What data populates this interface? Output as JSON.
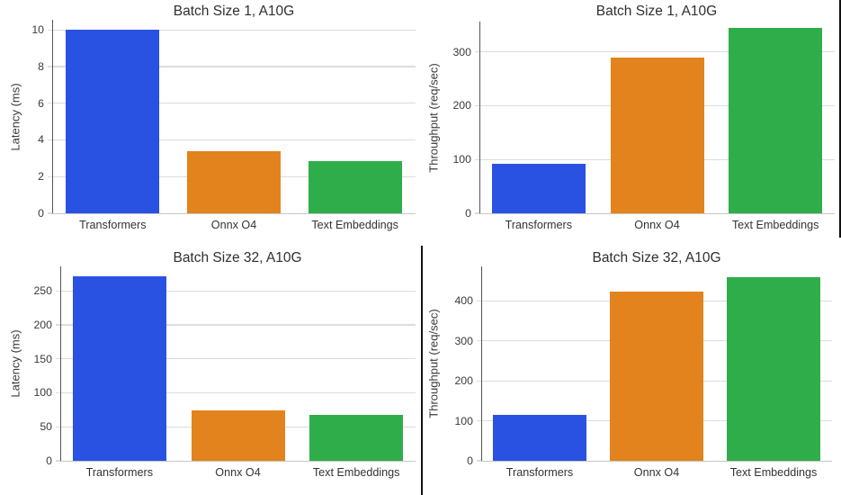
{
  "figure": {
    "layout": "2x2-grid-of-bar-charts",
    "bar_palette": [
      "#2a52e2",
      "#e2831d",
      "#2fad4a"
    ],
    "divider_color": "#111111",
    "grid_color": "#dcdcdc",
    "axis_line_color": "#c6c6c6",
    "spine_color": "#555555",
    "text_color": "#3a3a3a"
  },
  "chart_data": [
    {
      "type": "bar",
      "title": "Batch Size 1, A10G",
      "ylabel": "Latency (ms)",
      "xlabel": "",
      "categories": [
        "Transformers",
        "Onnx O4",
        "Text Embeddings"
      ],
      "values": [
        10.0,
        3.4,
        2.85
      ],
      "yticks": [
        0,
        2,
        4,
        6,
        8,
        10
      ],
      "ylim": [
        0,
        10.55
      ],
      "grid": true,
      "legend": false
    },
    {
      "type": "bar",
      "title": "Batch Size 1, A10G",
      "ylabel": "Throughput (req/sec)",
      "xlabel": "",
      "categories": [
        "Transformers",
        "Onnx O4",
        "Text Embeddings"
      ],
      "values": [
        92,
        289,
        344
      ],
      "yticks": [
        0,
        100,
        200,
        300
      ],
      "ylim": [
        0,
        356
      ],
      "grid": true,
      "legend": false
    },
    {
      "type": "bar",
      "title": "Batch Size 32, A10G",
      "ylabel": "Latency (ms)",
      "xlabel": "",
      "categories": [
        "Transformers",
        "Onnx O4",
        "Text Embeddings"
      ],
      "values": [
        271,
        74,
        67
      ],
      "yticks": [
        0,
        50,
        100,
        150,
        200,
        250
      ],
      "ylim": [
        0,
        286
      ],
      "grid": true,
      "legend": false
    },
    {
      "type": "bar",
      "title": "Batch Size 32, A10G",
      "ylabel": "Throughput (req/sec)",
      "xlabel": "",
      "categories": [
        "Transformers",
        "Onnx O4",
        "Text Embeddings"
      ],
      "values": [
        115,
        422,
        458
      ],
      "yticks": [
        0,
        100,
        200,
        300,
        400
      ],
      "ylim": [
        0,
        486
      ],
      "grid": true,
      "legend": false
    }
  ]
}
